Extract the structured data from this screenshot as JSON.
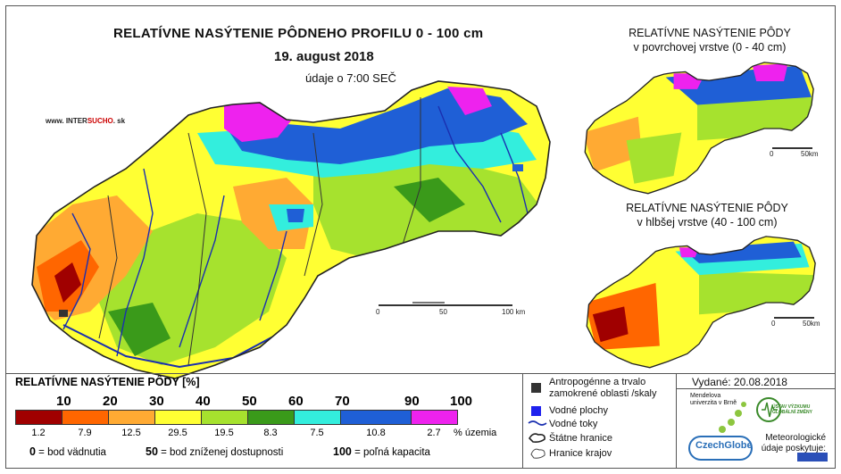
{
  "title": "RELATÍVNE NASÝTENIE PÔDNEHO PROFILU 0 - 100 cm",
  "date": "19. august 2018",
  "time": "údaje o 7:00 SEČ",
  "website": {
    "pre": "www. INTER",
    "mid": "SUCHO",
    "post": ". sk"
  },
  "inset_top": {
    "line1": "RELATÍVNE NASÝTENIE PÔDY",
    "line2": "v povrchovej vrstve (0 - 40 cm)"
  },
  "inset_bottom": {
    "line1": "RELATÍVNE NASÝTENIE PÔDY",
    "line2": "v hlbšej vrstve (40 - 100 cm)"
  },
  "scale_main": {
    "t0": "0",
    "t1": "50",
    "t2": "100 km"
  },
  "scale_inset": {
    "t0": "0",
    "t1": "50km"
  },
  "legend": {
    "title": "RELATÍVNE NASÝTENIE PÔDY [%]",
    "thresholds": [
      "10",
      "20",
      "30",
      "40",
      "50",
      "60",
      "70",
      "90",
      "100"
    ],
    "classes": [
      {
        "color": "#a00000",
        "pct": "1.2"
      },
      {
        "color": "#ff6600",
        "pct": "7.9"
      },
      {
        "color": "#ffaa33",
        "pct": "12.5"
      },
      {
        "color": "#ffff33",
        "pct": "29.5"
      },
      {
        "color": "#a6e22e",
        "pct": "19.5"
      },
      {
        "color": "#3a9a1a",
        "pct": "8.3"
      },
      {
        "color": "#33eedd",
        "pct": "7.5"
      },
      {
        "color": "#1f5fd6",
        "pct": "10.8"
      },
      {
        "color": "#ee22ee",
        "pct": "2.7"
      }
    ],
    "pct_unit": "% územia",
    "notes": [
      {
        "num": "0",
        "text": "= bod vädnutia"
      },
      {
        "num": "50",
        "text": "= bod zníženej dostupnosti"
      },
      {
        "num": "100",
        "text": "= poľná kapacita"
      }
    ]
  },
  "symbols": {
    "anthropogenic": "Antropogénne a trvalo zamokrené oblasti /skaly",
    "water_bodies": "Vodné plochy",
    "rivers": "Vodné toky",
    "state_border": "Štátne hranice",
    "regions": "Hranice krajov"
  },
  "issued": "Vydané: 20.08.2018",
  "logos": {
    "mendel": "Mendelova univerzita v Brně",
    "czechglobe": "CzechGlobe",
    "ufa": "ÚSTAV VÝZKUMU GLOBÁLNÍ ZMĚNY",
    "meteo": "Meteorologické údaje poskytuje:"
  },
  "colors": {
    "purple": "#ee22ee",
    "blue": "#1f5fd6",
    "yellow": "#ffff33",
    "green": "#a6e22e",
    "orange": "#ffaa33",
    "red": "#a00000"
  }
}
